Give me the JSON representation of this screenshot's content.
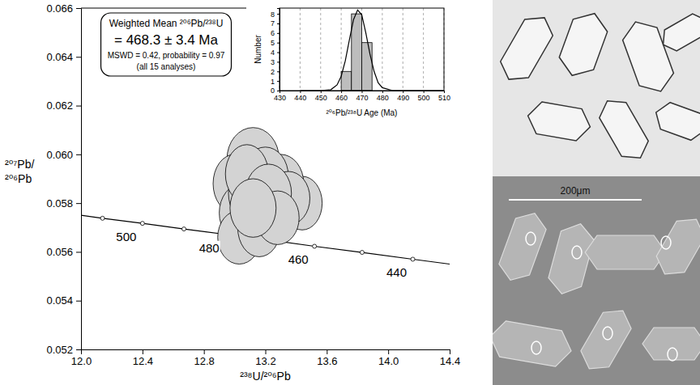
{
  "chart_data": [
    {
      "type": "scatter",
      "x_label": "²³⁸U/²⁰⁶Pb",
      "y_label": "²⁰⁷Pb/²⁰⁶Pb",
      "xlim": [
        12.0,
        14.4
      ],
      "xticks": [
        {
          "value": 12,
          "label": "12.0"
        },
        12.4,
        12.8,
        13.2,
        13.6,
        {
          "value": 14,
          "label": "14.0"
        },
        14.4
      ],
      "ylim": [
        0.052,
        0.066
      ],
      "yticks": [
        0.052,
        0.054,
        0.056,
        0.058,
        {
          "value": 0.06,
          "label": "0.060"
        },
        0.062,
        0.064,
        0.066
      ],
      "x": [
        13.12,
        13.44,
        13.0,
        13.3,
        13.2,
        13.05,
        13.25,
        13.1,
        13.03,
        13.16,
        13.35,
        13.08,
        13.22,
        13.28,
        13.12
      ],
      "y": [
        0.0598,
        0.058,
        0.0588,
        0.0588,
        0.0591,
        0.0576,
        0.0578,
        0.0584,
        0.0566,
        0.057,
        0.0582,
        0.0592,
        0.0584,
        0.0574,
        0.0578
      ],
      "x_error": [
        0.17,
        0.13,
        0.14,
        0.15,
        0.15,
        0.15,
        0.15,
        0.14,
        0.14,
        0.14,
        0.14,
        0.14,
        0.15,
        0.14,
        0.15
      ],
      "y_error": [
        0.0013,
        0.0011,
        0.0012,
        0.0012,
        0.0012,
        0.0012,
        0.0012,
        0.0012,
        0.0011,
        0.0012,
        0.0011,
        0.0012,
        0.0012,
        0.0011,
        0.0012
      ],
      "marker": "ellipse",
      "color": "#d3d3d3",
      "curve": {
        "x": [
          12.0,
          12.14,
          12.4,
          12.67,
          12.94,
          13.23,
          13.52,
          13.83,
          14.16,
          14.4
        ],
        "y": [
          0.0575,
          0.05738,
          0.05717,
          0.05694,
          0.05672,
          0.05648,
          0.05623,
          0.05598,
          0.0557,
          0.0555
        ],
        "color": "#000000"
      },
      "curve_ticks": {
        "x": [
          12.14,
          12.4,
          12.67,
          12.94,
          13.23,
          13.52,
          13.83,
          14.16
        ],
        "y": [
          0.05738,
          0.05717,
          0.05694,
          0.05672,
          0.05648,
          0.05623,
          0.05598,
          0.0557
        ],
        "labels": [
          null,
          500,
          null,
          480,
          null,
          460,
          null,
          440
        ]
      },
      "annotation": [
        "Weighted Mean ²⁰⁶Pb/²³⁸U",
        "= 468.3 ± 3.4  Ma",
        "MSWD = 0.42, probability = 0.97",
        "(all 15 analyses)"
      ]
    },
    {
      "type": "histogram",
      "x_label": "²⁰⁶Pb/²³⁸U Age (Ma)",
      "y_label": "Number",
      "bins": [
        460,
        465,
        470,
        475
      ],
      "values": [
        2,
        8,
        5
      ],
      "color": "#bdbdbd",
      "xlim": [
        430,
        510
      ],
      "xticks": [
        430,
        440,
        450,
        460,
        470,
        480,
        490,
        500,
        510
      ],
      "ylim": [
        0,
        8.6
      ],
      "yticks": [
        0,
        1,
        2,
        3,
        4,
        5,
        6,
        7,
        8
      ],
      "grid": "x",
      "curve": {
        "x": [
          440,
          445,
          450,
          455,
          458,
          460,
          462,
          464,
          466,
          468,
          470,
          472,
          474,
          476,
          478,
          480,
          485,
          490,
          500,
          510
        ],
        "y": [
          0,
          0,
          0,
          0.1,
          0.6,
          1.5,
          3.1,
          5.3,
          7.4,
          8.4,
          7.9,
          6.0,
          3.8,
          2.0,
          0.8,
          0.3,
          0,
          0,
          0,
          0
        ]
      }
    }
  ],
  "photos": {
    "scale_label": "200μm"
  }
}
